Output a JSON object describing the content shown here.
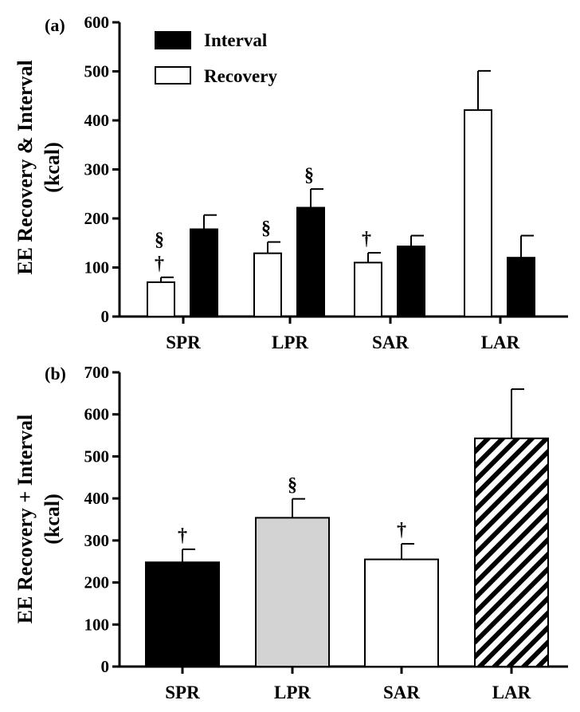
{
  "chart_data": [
    {
      "panel_label": "(a)",
      "type": "bar",
      "ylabel_line1": "EE Recovery & Interval",
      "ylabel_line2": "(kcal)",
      "ylim": [
        0,
        600
      ],
      "yticks": [
        0,
        100,
        200,
        300,
        400,
        500,
        600
      ],
      "categories": [
        "SPR",
        "LPR",
        "SAR",
        "LAR"
      ],
      "legend": {
        "position": "top-left",
        "items": [
          "Interval",
          "Recovery"
        ]
      },
      "series": [
        {
          "name": "Recovery",
          "fill": "#ffffff",
          "values": [
            70,
            129,
            110,
            421
          ],
          "errors": [
            10,
            23,
            20,
            80
          ]
        },
        {
          "name": "Interval",
          "fill": "#000000",
          "values": [
            178,
            222,
            143,
            120
          ],
          "errors": [
            29,
            38,
            22,
            45
          ]
        }
      ],
      "annotations": [
        {
          "category": "SPR",
          "series": "Recovery",
          "symbols": [
            "§",
            "†"
          ]
        },
        {
          "category": "LPR",
          "series": "Recovery",
          "symbols": [
            "§"
          ]
        },
        {
          "category": "LPR",
          "series": "Interval",
          "symbols": [
            "§"
          ]
        },
        {
          "category": "SAR",
          "series": "Recovery",
          "symbols": [
            "†"
          ]
        }
      ]
    },
    {
      "panel_label": "(b)",
      "type": "bar",
      "ylabel_line1": "EE Recovery + Interval",
      "ylabel_line2": "(kcal)",
      "ylim": [
        0,
        700
      ],
      "yticks": [
        0,
        100,
        200,
        300,
        400,
        500,
        600,
        700
      ],
      "categories": [
        "SPR",
        "LPR",
        "SAR",
        "LAR"
      ],
      "values": [
        248,
        354,
        255,
        543
      ],
      "errors": [
        31,
        45,
        37,
        117
      ],
      "fills": [
        "#000000",
        "#d3d3d3",
        "#ffffff",
        "hatch"
      ],
      "annotations": [
        {
          "category": "SPR",
          "symbols": [
            "†"
          ]
        },
        {
          "category": "LPR",
          "symbols": [
            "§"
          ]
        },
        {
          "category": "SAR",
          "symbols": [
            "†"
          ]
        }
      ]
    }
  ]
}
